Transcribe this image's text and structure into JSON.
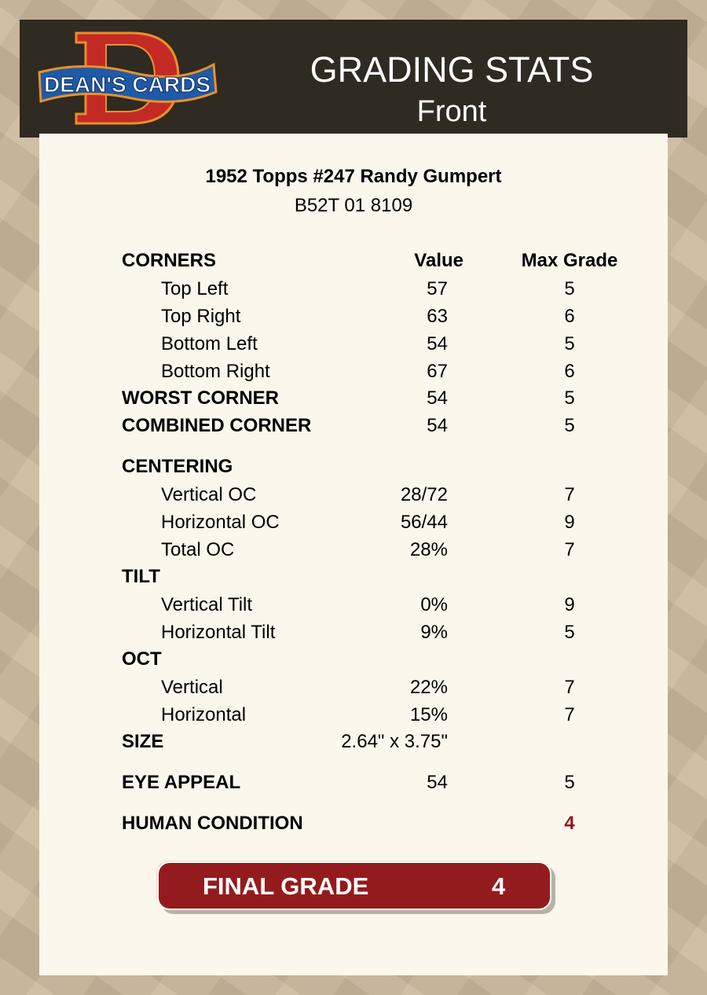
{
  "header": {
    "logo_text": "DEAN'S CARDS",
    "title": "GRADING STATS",
    "subtitle": "Front"
  },
  "card": {
    "name": "1952 Topps #247 Randy Gumpert",
    "id": "B52T 01 8109"
  },
  "columns": {
    "value": "Value",
    "max": "Max Grade"
  },
  "rows": [
    {
      "label": "CORNERS",
      "value": "",
      "max": ""
    },
    {
      "label": "Top Left",
      "value": "57",
      "max": "5"
    },
    {
      "label": "Top Right",
      "value": "63",
      "max": "6"
    },
    {
      "label": "Bottom Left",
      "value": "54",
      "max": "5"
    },
    {
      "label": "Bottom Right",
      "value": "67",
      "max": "6"
    },
    {
      "label": "WORST CORNER",
      "value": "54",
      "max": "5"
    },
    {
      "label": "COMBINED CORNER",
      "value": "54",
      "max": "5"
    },
    {
      "label": "CENTERING",
      "value": "",
      "max": ""
    },
    {
      "label": "Vertical OC",
      "value": "28/72",
      "max": "7"
    },
    {
      "label": "Horizontal OC",
      "value": "56/44",
      "max": "9"
    },
    {
      "label": "Total OC",
      "value": "28%",
      "max": "7"
    },
    {
      "label": "TILT",
      "value": "",
      "max": ""
    },
    {
      "label": "Vertical Tilt",
      "value": "0%",
      "max": "9"
    },
    {
      "label": "Horizontal Tilt",
      "value": "9%",
      "max": "5"
    },
    {
      "label": "OCT",
      "value": "",
      "max": ""
    },
    {
      "label": "Vertical",
      "value": "22%",
      "max": "7"
    },
    {
      "label": "Horizontal",
      "value": "15%",
      "max": "7"
    },
    {
      "label": "SIZE",
      "value": "2.64\" x 3.75\"",
      "max": ""
    },
    {
      "label": "EYE APPEAL",
      "value": "54",
      "max": "5"
    },
    {
      "label": "HUMAN CONDITION",
      "value": "",
      "max": "4"
    }
  ],
  "final": {
    "label": "FINAL GRADE",
    "value": "4"
  },
  "colors": {
    "header_bg": "#2f2a22",
    "card_bg": "#fcf7ec",
    "accent_red": "#941b1d"
  }
}
